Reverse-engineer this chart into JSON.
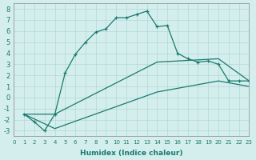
{
  "xlabel": "Humidex (Indice chaleur)",
  "background_color": "#d4eeed",
  "line_color": "#1a7a6e",
  "xlim": [
    0,
    23
  ],
  "ylim": [
    -3.5,
    8.5
  ],
  "x_ticks": [
    0,
    1,
    2,
    3,
    4,
    5,
    6,
    7,
    8,
    9,
    10,
    11,
    12,
    13,
    14,
    15,
    16,
    17,
    18,
    19,
    20,
    21,
    22,
    23
  ],
  "y_ticks": [
    -3,
    -2,
    -1,
    0,
    1,
    2,
    3,
    4,
    5,
    6,
    7,
    8
  ],
  "line1_x": [
    1,
    2,
    3,
    4,
    5,
    6,
    7,
    8,
    9,
    10,
    11,
    12,
    13,
    14,
    15,
    16,
    17,
    18,
    19,
    20,
    21,
    22,
    23
  ],
  "line1_y": [
    -1.5,
    -2.2,
    -3.0,
    -1.5,
    2.2,
    3.9,
    5.0,
    5.9,
    6.2,
    7.2,
    7.2,
    7.5,
    7.8,
    6.4,
    6.5,
    4.0,
    3.5,
    3.2,
    3.3,
    3.0,
    1.5,
    1.5,
    1.5
  ],
  "line2_x": [
    1,
    4,
    14,
    20,
    23
  ],
  "line2_y": [
    -1.5,
    -1.5,
    3.2,
    3.5,
    1.5
  ],
  "line3_x": [
    1,
    4,
    14,
    20,
    23
  ],
  "line3_y": [
    -1.5,
    -2.8,
    0.5,
    1.5,
    1.0
  ]
}
